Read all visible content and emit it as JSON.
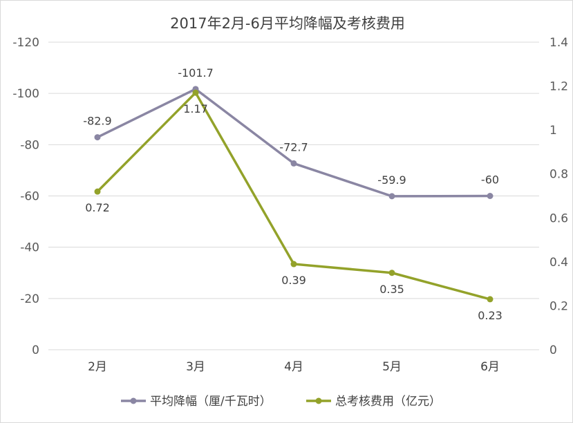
{
  "chart_data": {
    "type": "line",
    "title": "2017年2月-6月平均降幅及考核费用",
    "categories": [
      "2月",
      "3月",
      "4月",
      "5月",
      "6月"
    ],
    "left_axis": {
      "ylim": [
        0,
        -120
      ],
      "ticks": [
        "-120",
        "-100",
        "-80",
        "-60",
        "-40",
        "-20",
        "0"
      ],
      "reversed": true
    },
    "right_axis": {
      "ylim": [
        0,
        1.4
      ],
      "ticks": [
        "1.4",
        "1.2",
        "1",
        "0.8",
        "0.6",
        "0.4",
        "0.2",
        "0"
      ]
    },
    "grid": "horizontal",
    "legend": "bottom",
    "series": [
      {
        "name": "平均降幅（厘/千瓦时）",
        "axis": "left",
        "values": [
          -82.9,
          -101.7,
          -72.7,
          -59.9,
          -60
        ],
        "labels": [
          "-82.9",
          "-101.7",
          "-72.7",
          "-59.9",
          "-60"
        ],
        "label_position": "above",
        "color": "#8a86a3"
      },
      {
        "name": "总考核费用（亿元）",
        "axis": "right",
        "values": [
          0.72,
          1.17,
          0.39,
          0.35,
          0.23
        ],
        "labels": [
          "0.72",
          "1.17",
          "0.39",
          "0.35",
          "0.23"
        ],
        "label_position": "below",
        "color": "#93a22a"
      }
    ]
  }
}
